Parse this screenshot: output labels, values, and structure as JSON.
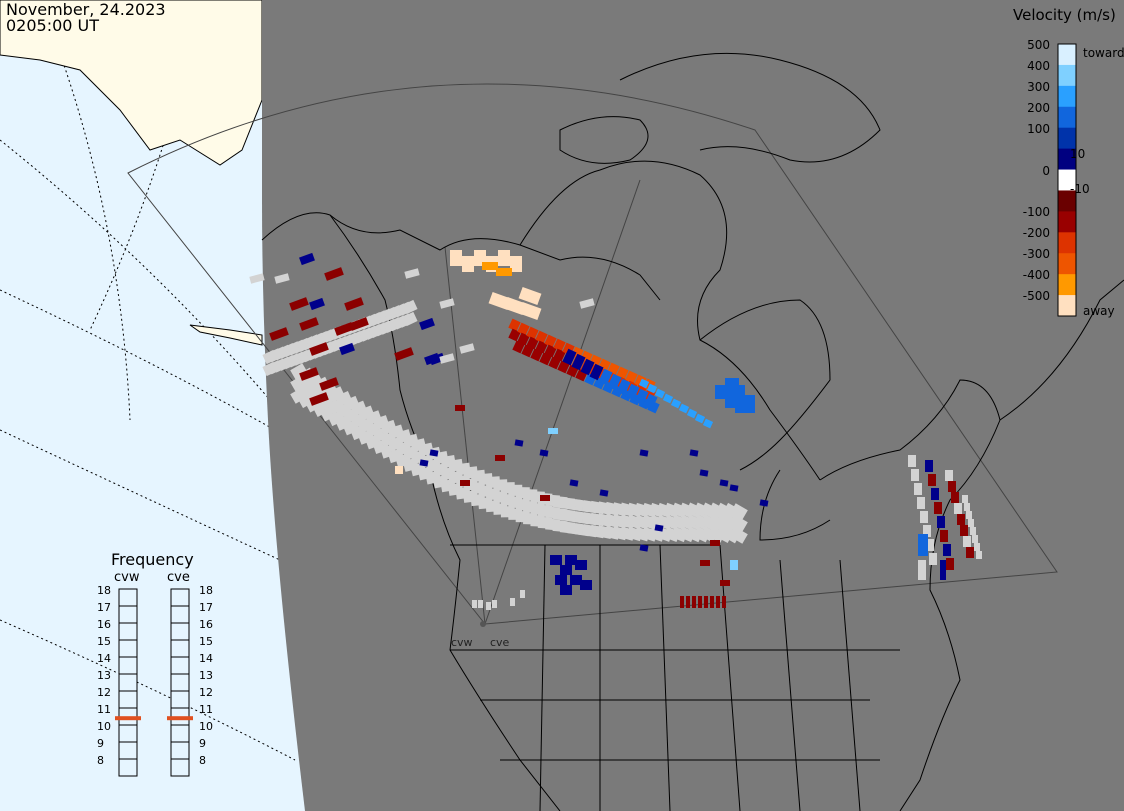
{
  "header": {
    "date": "November, 24.2023",
    "time": "0205:00 UT"
  },
  "colors": {
    "ocean": "#e6f5ff",
    "land_outside": "#fffbe8",
    "night_shade": "#7a7a7a",
    "coast": "#000000",
    "ground_scatter": "#d3d3d3",
    "dark_red": "#8b0000",
    "dark_blue": "#00008b",
    "marker": "#e05020"
  },
  "velocity_scale": {
    "title": "Velocity (m/s)",
    "ticks": [
      "500",
      "400",
      "300",
      "200",
      "100",
      "10",
      "0",
      "-10",
      "-100",
      "-200",
      "-300",
      "-400",
      "-500"
    ],
    "toward_label": "toward",
    "away_label": "away",
    "stops": [
      {
        "v": 500,
        "color": "#d9f0ff"
      },
      {
        "v": 400,
        "color": "#7fd0ff"
      },
      {
        "v": 300,
        "color": "#2aa0ff"
      },
      {
        "v": 200,
        "color": "#1166dd"
      },
      {
        "v": 100,
        "color": "#0033aa"
      },
      {
        "v": 10,
        "color": "#000080"
      },
      {
        "v": 0,
        "color": "#ffffff"
      },
      {
        "v": -10,
        "color": "#6a0000"
      },
      {
        "v": -100,
        "color": "#990000"
      },
      {
        "v": -200,
        "color": "#dd3300"
      },
      {
        "v": -300,
        "color": "#ee5500"
      },
      {
        "v": -400,
        "color": "#ff9900"
      },
      {
        "v": -500,
        "color": "#ffe0c0"
      }
    ]
  },
  "frequency_panel": {
    "title": "Frequency",
    "radars": [
      {
        "name": "cvw",
        "freq_mhz": 10.9
      },
      {
        "name": "cve",
        "freq_mhz": 10.9
      }
    ],
    "scale": [
      "18",
      "17",
      "16",
      "15",
      "14",
      "13",
      "12",
      "11",
      "10",
      "9",
      "8"
    ]
  },
  "map": {
    "radar_labels": [
      "cvw",
      "cve"
    ]
  }
}
